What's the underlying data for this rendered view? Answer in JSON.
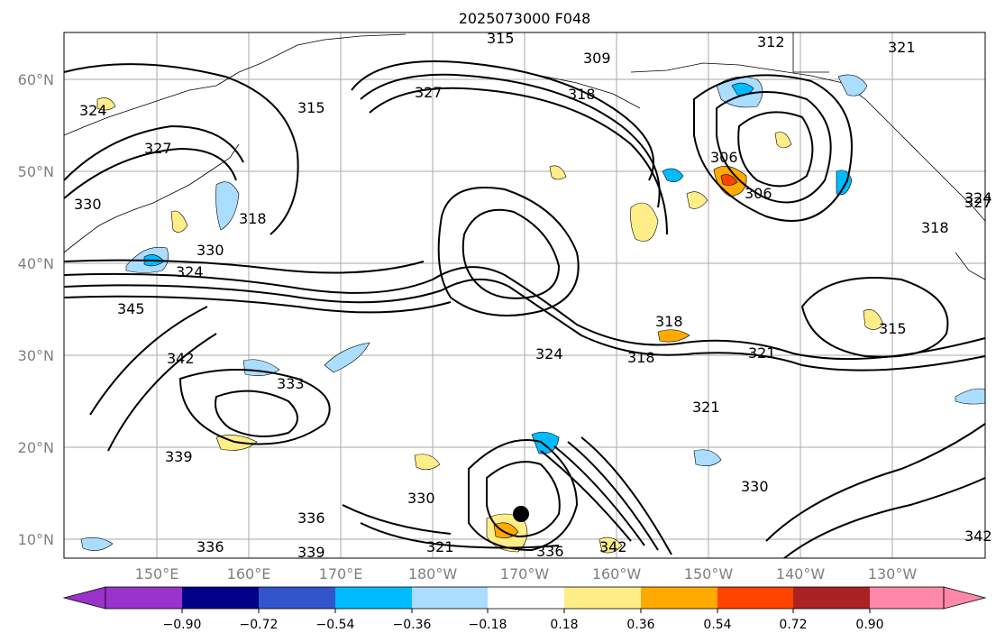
{
  "title": "2025073000 F048",
  "map": {
    "lat_labels": [
      "60°N",
      "50°N",
      "40°N",
      "30°N",
      "20°N",
      "10°N"
    ],
    "lon_labels": [
      "150°E",
      "160°E",
      "170°E",
      "180°W",
      "170°W",
      "160°W",
      "150°W",
      "140°W",
      "130°W"
    ],
    "contour_labels": [
      "315",
      "312",
      "309",
      "318",
      "321",
      "324",
      "327",
      "315",
      "327",
      "324",
      "330",
      "318",
      "330",
      "324",
      "345",
      "342",
      "333",
      "339",
      "336",
      "336",
      "339",
      "330",
      "321",
      "336",
      "324",
      "318",
      "321",
      "321",
      "330",
      "342",
      "318",
      "306",
      "306",
      "327",
      "318",
      "315",
      "342"
    ],
    "cyclone_marker": "tropical-cyclone-dot"
  },
  "colorbar": {
    "ticks": [
      "−0.90",
      "−0.72",
      "−0.54",
      "−0.36",
      "−0.18",
      "0.18",
      "0.36",
      "0.54",
      "0.72",
      "0.90"
    ],
    "colors": [
      "#9933cc",
      "#000088",
      "#3355cc",
      "#00bbff",
      "#aaddff",
      "#ffffff",
      "#ffee88",
      "#ffaa00",
      "#ff4400",
      "#aa2222",
      "#ff88aa"
    ]
  }
}
